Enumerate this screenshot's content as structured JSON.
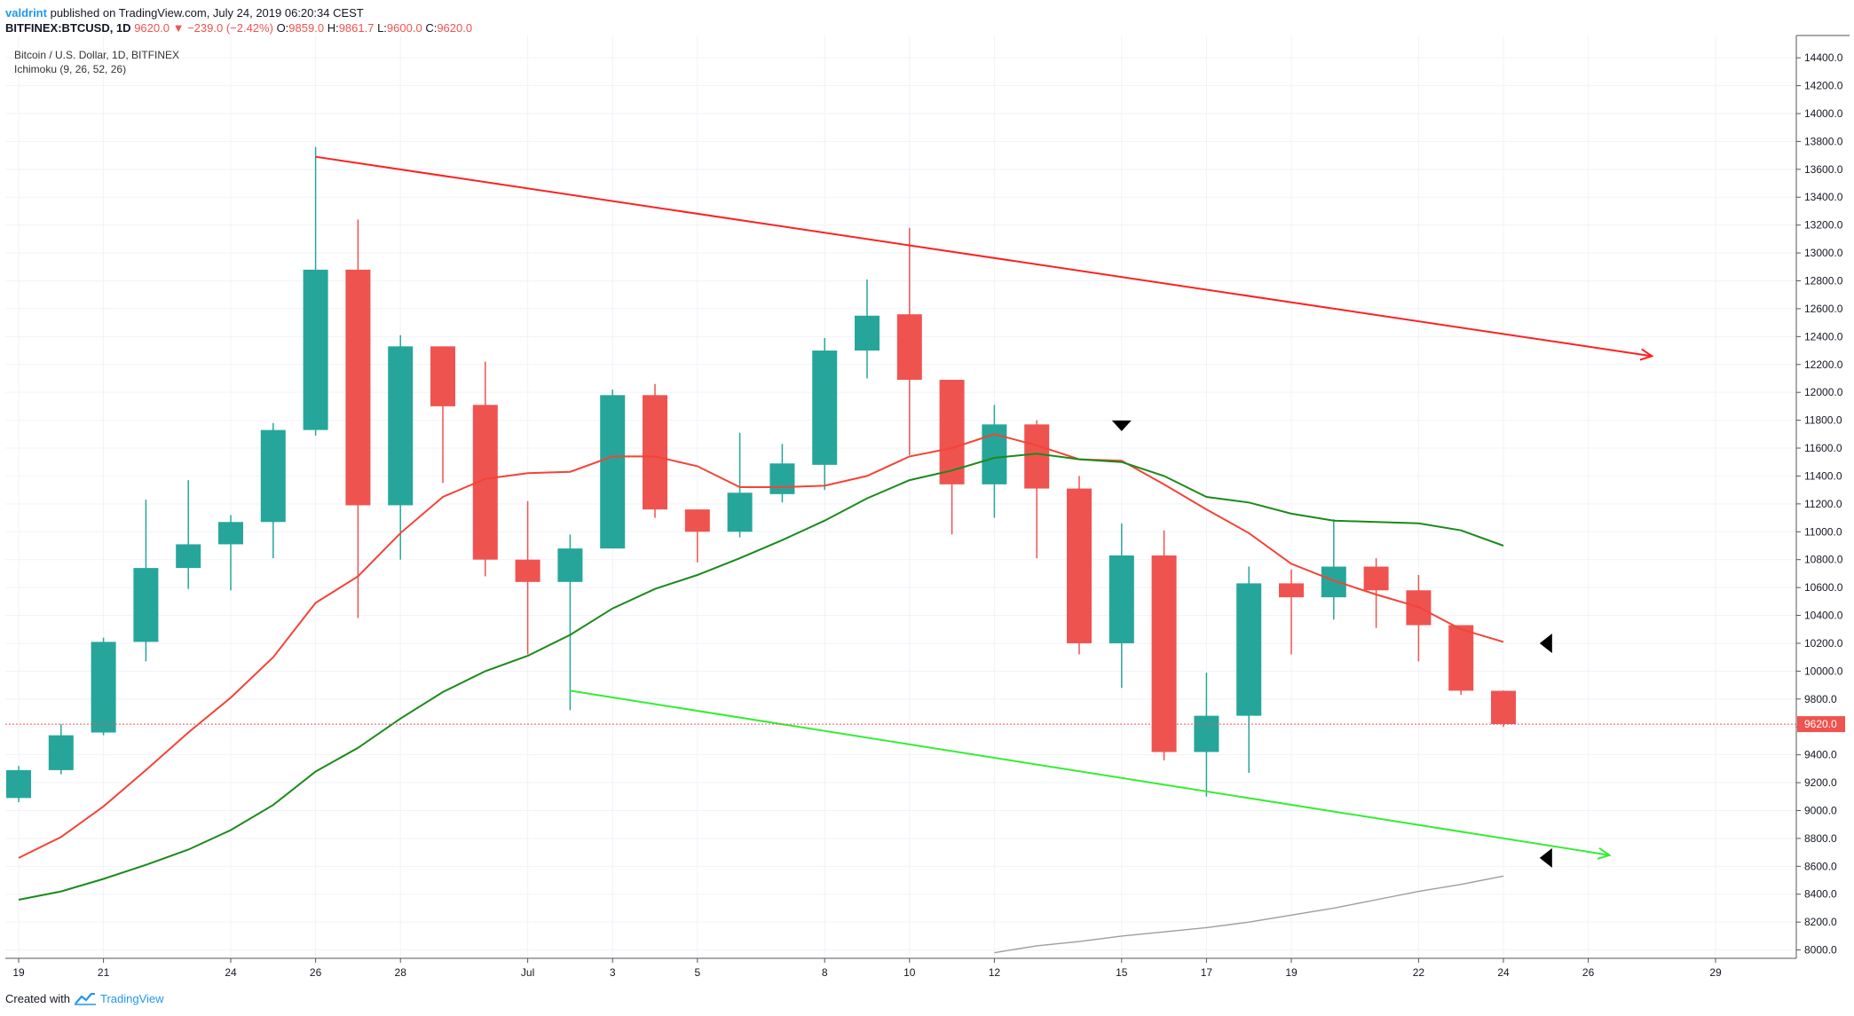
{
  "header": {
    "user": "valdrint",
    "published": "published on TradingView.com, July 24, 2019 06:20:34 CEST"
  },
  "ohlc": {
    "symbol": "BITFINEX:BTCUSD, 1D",
    "last": "9620.0",
    "change_arrow": "▼",
    "change": "−239.0 (−2.42%)",
    "o_label": "O:",
    "o": "9859.0",
    "h_label": "H:",
    "h": "9861.7",
    "l_label": "L:",
    "l": "9600.0",
    "c_label": "C:",
    "c": "9620.0"
  },
  "legend": {
    "title": "Bitcoin / U.S. Dollar, 1D, BITFINEX",
    "indicator": "Ichimoku (9, 26, 52, 26)"
  },
  "footer": {
    "created": "Created with",
    "brand": "TradingView",
    "logo_icon": "tradingview-logo-icon"
  },
  "colors": {
    "up": "#26a69a",
    "down": "#ef5350",
    "conversion": "#f44336",
    "base": "#1b8a1b",
    "resistance": "#ff2020",
    "support": "#33ee33",
    "lagging": "#9e9e9e",
    "price_line": "#ef5350"
  },
  "chart_data": {
    "type": "candlestick",
    "title": "Bitcoin / U.S. Dollar, 1D, BITFINEX",
    "indicator": "Ichimoku (9, 26, 52, 26)",
    "y_axis": {
      "ylim": [
        7940,
        14560
      ],
      "ticks": [
        8000,
        8200,
        8400,
        8600,
        8800,
        9000,
        9200,
        9400,
        9600,
        9800,
        10000,
        10200,
        10400,
        10600,
        10800,
        11000,
        11200,
        11400,
        11600,
        11800,
        12000,
        12200,
        12400,
        12600,
        12800,
        13000,
        13200,
        13400,
        13600,
        13800,
        14000,
        14200,
        14400
      ],
      "last_price_label": "9620.0",
      "last_price": 9620
    },
    "x_axis": {
      "ticks": [
        {
          "label": "19",
          "day": 0
        },
        {
          "label": "21",
          "day": 2
        },
        {
          "label": "24",
          "day": 5
        },
        {
          "label": "26",
          "day": 7
        },
        {
          "label": "28",
          "day": 9
        },
        {
          "label": "Jul",
          "day": 12
        },
        {
          "label": "3",
          "day": 14
        },
        {
          "label": "5",
          "day": 16
        },
        {
          "label": "8",
          "day": 19
        },
        {
          "label": "10",
          "day": 21
        },
        {
          "label": "12",
          "day": 23
        },
        {
          "label": "15",
          "day": 26
        },
        {
          "label": "17",
          "day": 28
        },
        {
          "label": "19",
          "day": 30
        },
        {
          "label": "22",
          "day": 33
        },
        {
          "label": "24",
          "day": 35
        },
        {
          "label": "26",
          "day": 37
        },
        {
          "label": "29",
          "day": 40
        }
      ]
    },
    "candles": [
      {
        "date": "2019-06-19",
        "o": 9090,
        "h": 9320,
        "l": 9060,
        "c": 9290
      },
      {
        "date": "2019-06-20",
        "o": 9290,
        "h": 9620,
        "l": 9260,
        "c": 9540
      },
      {
        "date": "2019-06-21",
        "o": 9560,
        "h": 10240,
        "l": 9540,
        "c": 10210
      },
      {
        "date": "2019-06-22",
        "o": 10210,
        "h": 11230,
        "l": 10070,
        "c": 10740
      },
      {
        "date": "2019-06-23",
        "o": 10740,
        "h": 11370,
        "l": 10590,
        "c": 10910
      },
      {
        "date": "2019-06-24",
        "o": 10910,
        "h": 11120,
        "l": 10580,
        "c": 11070
      },
      {
        "date": "2019-06-25",
        "o": 11070,
        "h": 11780,
        "l": 10810,
        "c": 11730
      },
      {
        "date": "2019-06-26",
        "o": 11730,
        "h": 13760,
        "l": 11690,
        "c": 12880
      },
      {
        "date": "2019-06-27",
        "o": 12880,
        "h": 13240,
        "l": 10380,
        "c": 11190
      },
      {
        "date": "2019-06-28",
        "o": 11190,
        "h": 12410,
        "l": 10800,
        "c": 12330
      },
      {
        "date": "2019-06-29",
        "o": 12330,
        "h": 12330,
        "l": 11350,
        "c": 11900
      },
      {
        "date": "2019-06-30",
        "o": 11910,
        "h": 12220,
        "l": 10680,
        "c": 10800
      },
      {
        "date": "2019-07-01",
        "o": 10800,
        "h": 11220,
        "l": 10120,
        "c": 10640
      },
      {
        "date": "2019-07-02",
        "o": 10640,
        "h": 10980,
        "l": 9720,
        "c": 10880
      },
      {
        "date": "2019-07-03",
        "o": 10880,
        "h": 12020,
        "l": 10880,
        "c": 11980
      },
      {
        "date": "2019-07-04",
        "o": 11980,
        "h": 12060,
        "l": 11100,
        "c": 11160
      },
      {
        "date": "2019-07-05",
        "o": 11160,
        "h": 11160,
        "l": 10780,
        "c": 11000
      },
      {
        "date": "2019-07-06",
        "o": 11000,
        "h": 11710,
        "l": 10960,
        "c": 11280
      },
      {
        "date": "2019-07-07",
        "o": 11270,
        "h": 11630,
        "l": 11210,
        "c": 11490
      },
      {
        "date": "2019-07-08",
        "o": 11480,
        "h": 12390,
        "l": 11300,
        "c": 12300
      },
      {
        "date": "2019-07-09",
        "o": 12300,
        "h": 12810,
        "l": 12100,
        "c": 12550
      },
      {
        "date": "2019-07-10",
        "o": 12560,
        "h": 13180,
        "l": 11550,
        "c": 12090
      },
      {
        "date": "2019-07-11",
        "o": 12090,
        "h": 12090,
        "l": 10980,
        "c": 11340
      },
      {
        "date": "2019-07-12",
        "o": 11340,
        "h": 11910,
        "l": 11100,
        "c": 11770
      },
      {
        "date": "2019-07-13",
        "o": 11770,
        "h": 11800,
        "l": 10810,
        "c": 11310
      },
      {
        "date": "2019-07-14",
        "o": 11310,
        "h": 11400,
        "l": 10120,
        "c": 10200
      },
      {
        "date": "2019-07-15",
        "o": 10200,
        "h": 11060,
        "l": 9880,
        "c": 10830
      },
      {
        "date": "2019-07-16",
        "o": 10830,
        "h": 11010,
        "l": 9360,
        "c": 9420
      },
      {
        "date": "2019-07-17",
        "o": 9420,
        "h": 9990,
        "l": 9100,
        "c": 9680
      },
      {
        "date": "2019-07-18",
        "o": 9680,
        "h": 10750,
        "l": 9270,
        "c": 10630
      },
      {
        "date": "2019-07-19",
        "o": 10630,
        "h": 10730,
        "l": 10120,
        "c": 10530
      },
      {
        "date": "2019-07-20",
        "o": 10530,
        "h": 11090,
        "l": 10370,
        "c": 10750
      },
      {
        "date": "2019-07-21",
        "o": 10750,
        "h": 10810,
        "l": 10310,
        "c": 10580
      },
      {
        "date": "2019-07-22",
        "o": 10580,
        "h": 10690,
        "l": 10070,
        "c": 10330
      },
      {
        "date": "2019-07-23",
        "o": 10330,
        "h": 10330,
        "l": 9830,
        "c": 9860
      },
      {
        "date": "2019-07-24",
        "o": 9859,
        "h": 9861.7,
        "l": 9600,
        "c": 9620
      }
    ],
    "series": [
      {
        "name": "Conversion Line",
        "color": "#f44336",
        "points": [
          [
            0,
            8660
          ],
          [
            1,
            8810
          ],
          [
            2,
            9030
          ],
          [
            3,
            9290
          ],
          [
            4,
            9560
          ],
          [
            5,
            9810
          ],
          [
            6,
            10100
          ],
          [
            7,
            10490
          ],
          [
            8,
            10680
          ],
          [
            9,
            10990
          ],
          [
            10,
            11250
          ],
          [
            11,
            11380
          ],
          [
            12,
            11420
          ],
          [
            13,
            11430
          ],
          [
            14,
            11540
          ],
          [
            15,
            11540
          ],
          [
            16,
            11470
          ],
          [
            17,
            11320
          ],
          [
            18,
            11320
          ],
          [
            19,
            11330
          ],
          [
            20,
            11400
          ],
          [
            21,
            11540
          ],
          [
            22,
            11600
          ],
          [
            23,
            11700
          ],
          [
            24,
            11620
          ],
          [
            25,
            11520
          ],
          [
            26,
            11510
          ],
          [
            27,
            11340
          ],
          [
            28,
            11160
          ],
          [
            29,
            10990
          ],
          [
            30,
            10770
          ],
          [
            31,
            10650
          ],
          [
            32,
            10550
          ],
          [
            33,
            10460
          ],
          [
            34,
            10300
          ],
          [
            35,
            10210
          ]
        ]
      },
      {
        "name": "Base Line",
        "color": "#1b8a1b",
        "points": [
          [
            0,
            8360
          ],
          [
            1,
            8420
          ],
          [
            2,
            8510
          ],
          [
            3,
            8610
          ],
          [
            4,
            8720
          ],
          [
            5,
            8860
          ],
          [
            6,
            9040
          ],
          [
            7,
            9280
          ],
          [
            8,
            9450
          ],
          [
            9,
            9660
          ],
          [
            10,
            9850
          ],
          [
            11,
            10000
          ],
          [
            12,
            10110
          ],
          [
            13,
            10260
          ],
          [
            14,
            10450
          ],
          [
            15,
            10590
          ],
          [
            16,
            10690
          ],
          [
            17,
            10810
          ],
          [
            18,
            10940
          ],
          [
            19,
            11080
          ],
          [
            20,
            11240
          ],
          [
            21,
            11370
          ],
          [
            22,
            11440
          ],
          [
            23,
            11530
          ],
          [
            24,
            11560
          ],
          [
            25,
            11520
          ],
          [
            26,
            11500
          ],
          [
            27,
            11400
          ],
          [
            28,
            11250
          ],
          [
            29,
            11210
          ],
          [
            30,
            11130
          ],
          [
            31,
            11080
          ],
          [
            32,
            11070
          ],
          [
            33,
            11060
          ],
          [
            34,
            11010
          ],
          [
            35,
            10900
          ]
        ]
      },
      {
        "name": "Lagging Span",
        "color": "#9e9e9e",
        "points": [
          [
            23,
            7980
          ],
          [
            24,
            8030
          ],
          [
            25,
            8060
          ],
          [
            26,
            8100
          ],
          [
            27,
            8130
          ],
          [
            28,
            8160
          ],
          [
            29,
            8200
          ],
          [
            30,
            8250
          ],
          [
            31,
            8300
          ],
          [
            32,
            8360
          ],
          [
            33,
            8420
          ],
          [
            34,
            8470
          ],
          [
            35,
            8530
          ]
        ]
      }
    ],
    "trendlines": [
      {
        "name": "resistance",
        "from": [
          7,
          13690
        ],
        "to": [
          38.5,
          12260
        ],
        "color": "#ff2020"
      },
      {
        "name": "support",
        "from": [
          13,
          9860
        ],
        "to": [
          37.5,
          8680
        ],
        "color": "#33ee33"
      }
    ],
    "markers": [
      {
        "name": "down-triangle-marker",
        "day": 26,
        "price": 11760
      },
      {
        "name": "left-triangle-marker",
        "day": 36,
        "price": 10200
      },
      {
        "name": "left-triangle-marker",
        "day": 36,
        "price": 8660
      }
    ],
    "grid": true
  }
}
